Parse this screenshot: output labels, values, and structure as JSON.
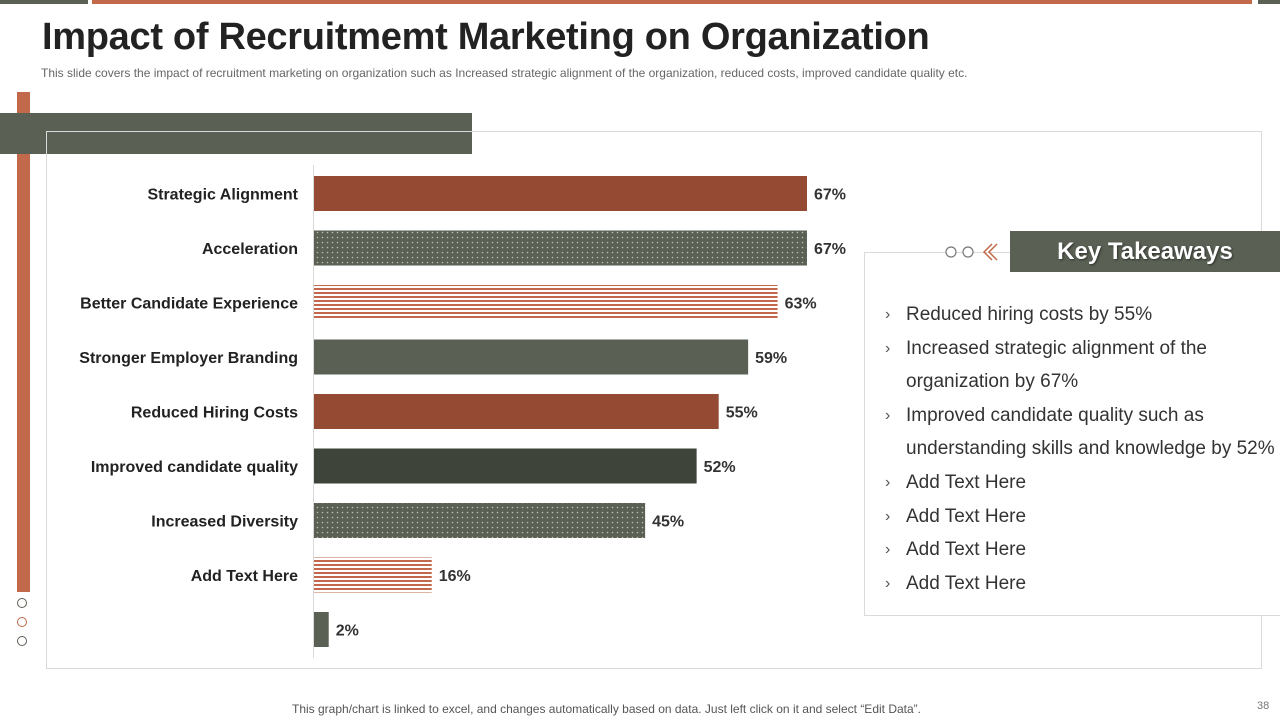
{
  "slide": {
    "title": "Impact of Recruitmemt Marketing on Organization",
    "subtitle": "This slide covers the impact of recruitment marketing on organization such as Increased strategic alignment of the organization, reduced costs, improved candidate quality etc.",
    "footer_note": "This graph/chart is linked to excel, and changes automatically based on data. Just left click on it and select “Edit Data”.",
    "page_number": "38"
  },
  "colors": {
    "accent": "#c1694a",
    "rust": "#944a33",
    "dark_green": "#5a6154",
    "darker_green": "#3e443a"
  },
  "chart_data": {
    "type": "bar",
    "orientation": "horizontal",
    "title": "",
    "xlabel": "",
    "ylabel": "",
    "xlim": [
      0,
      100
    ],
    "categories": [
      "Strategic Alignment",
      "Acceleration",
      "Better Candidate Experience",
      "Stronger Employer Branding",
      "Reduced Hiring Costs",
      "Improved candidate quality",
      "Increased Diversity",
      "Add Text Here",
      ""
    ],
    "values": [
      67,
      67,
      63,
      59,
      55,
      52,
      45,
      16,
      2
    ],
    "data_labels": [
      "67%",
      "67%",
      "63%",
      "59%",
      "55%",
      "52%",
      "45%",
      "16%",
      "2%"
    ],
    "bar_styles": [
      "solid-rust",
      "dotted-green",
      "striped-orange",
      "solid-green",
      "solid-rust",
      "solid-darkgreen",
      "dotted-green",
      "striped-orange",
      "solid-green"
    ],
    "grid": false,
    "legend": "none"
  },
  "takeaways": {
    "heading": "Key Takeaways",
    "items": [
      "Reduced hiring costs by 55%",
      "Increased strategic alignment of the organization by 67%",
      "Improved candidate quality such as understanding skills and knowledge by 52%",
      "Add Text Here",
      "Add Text Here",
      "Add Text Here",
      "Add Text Here"
    ],
    "bullet_icon": "chevron-right-icon"
  }
}
